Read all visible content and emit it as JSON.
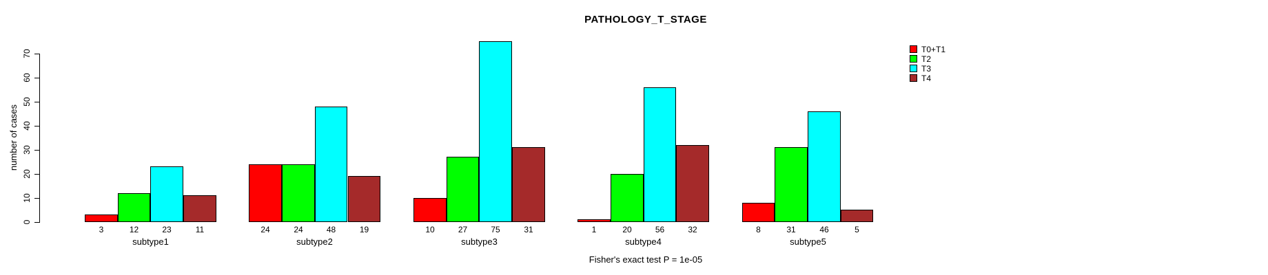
{
  "chart_data": {
    "type": "bar",
    "title": "PATHOLOGY_T_STAGE",
    "xlabel": "",
    "ylabel": "number of cases",
    "annotation": "Fisher's exact test P = 1e-05",
    "categories": [
      "subtype1",
      "subtype2",
      "subtype3",
      "subtype4",
      "subtype5"
    ],
    "series": [
      {
        "name": "T0+T1",
        "color": "#FF0000",
        "values": [
          3,
          24,
          10,
          1,
          8
        ]
      },
      {
        "name": "T2",
        "color": "#00FF00",
        "values": [
          12,
          24,
          27,
          20,
          31
        ]
      },
      {
        "name": "T3",
        "color": "#00FFFF",
        "values": [
          23,
          48,
          75,
          56,
          46
        ]
      },
      {
        "name": "T4",
        "color": "#A52A2A",
        "values": [
          11,
          19,
          31,
          32,
          5
        ]
      }
    ],
    "ylim": [
      0,
      75
    ],
    "yticks": [
      0,
      10,
      20,
      30,
      40,
      50,
      60,
      70
    ],
    "grid": false,
    "legend_position": "right",
    "value_labels_shown": true,
    "background_color": "#FFFFFF",
    "axis_color": "#000000"
  }
}
